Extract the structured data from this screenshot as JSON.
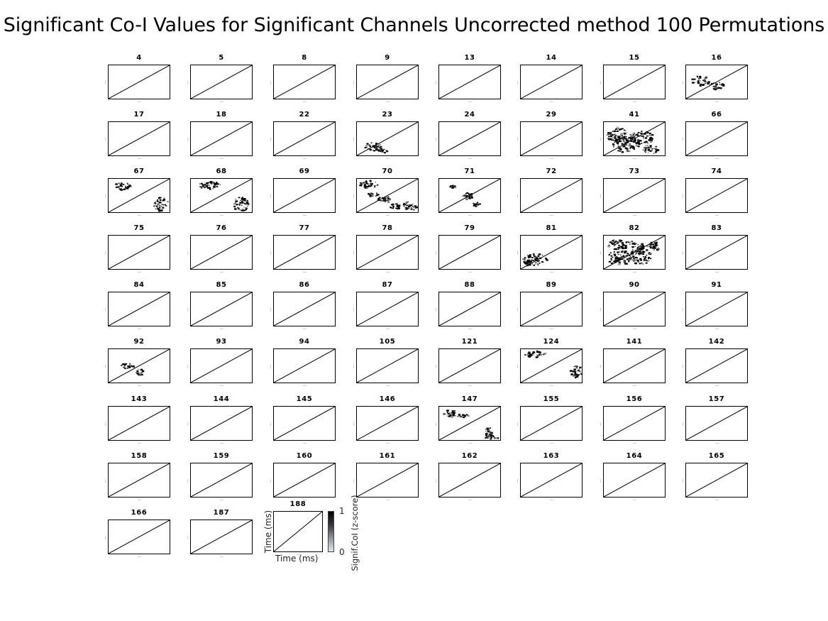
{
  "chart_data": {
    "type": "heatmap",
    "title": "Significant Co-I Values for Significant Channels Uncorrected method 100 Permutations",
    "xlabel": "Time (ms)",
    "ylabel": "Time (ms)",
    "colorbar": {
      "label": "Signif.CoI (z-score)",
      "min": "0",
      "max": "1",
      "colormap": "bone_r"
    },
    "channels": [
      "4",
      "5",
      "8",
      "9",
      "13",
      "14",
      "15",
      "16",
      "17",
      "18",
      "22",
      "23",
      "24",
      "29",
      "41",
      "66",
      "67",
      "68",
      "69",
      "70",
      "71",
      "72",
      "73",
      "74",
      "75",
      "76",
      "77",
      "78",
      "79",
      "81",
      "82",
      "83",
      "84",
      "85",
      "86",
      "87",
      "88",
      "89",
      "90",
      "91",
      "92",
      "93",
      "94",
      "105",
      "121",
      "124",
      "141",
      "142",
      "143",
      "144",
      "145",
      "146",
      "147",
      "155",
      "156",
      "157",
      "158",
      "159",
      "160",
      "161",
      "162",
      "163",
      "164",
      "165",
      "166",
      "187",
      "188"
    ],
    "channels_with_significant_values": [
      "16",
      "23",
      "41",
      "67",
      "68",
      "70",
      "71",
      "81",
      "82",
      "92",
      "124",
      "147"
    ],
    "layout": {
      "columns": 8,
      "rows": 9
    }
  }
}
